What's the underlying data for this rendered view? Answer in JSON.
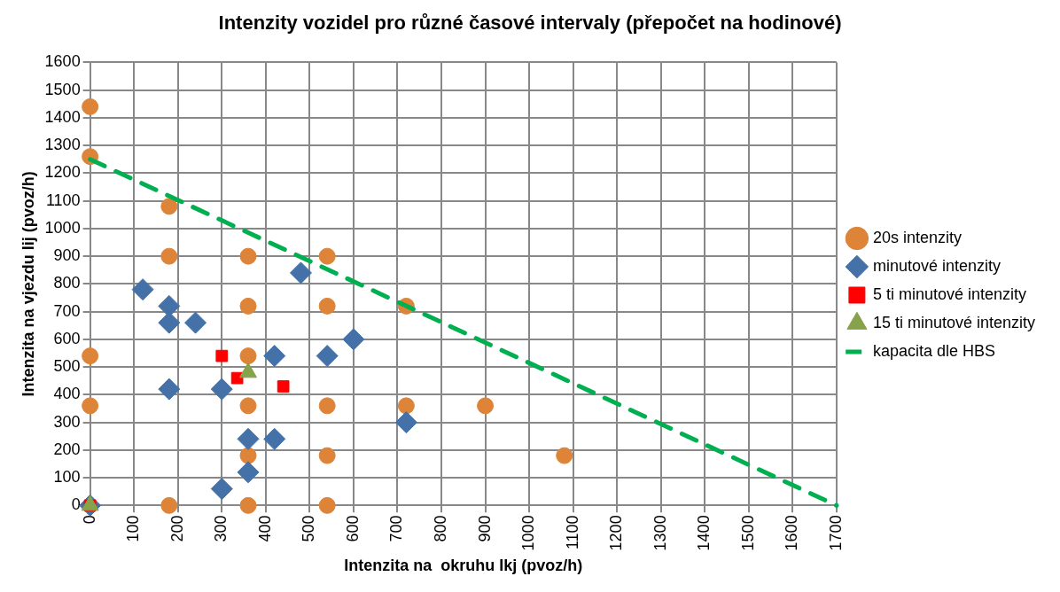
{
  "chart_data": {
    "type": "scatter",
    "title": "Intenzity vozidel pro různé časové intervaly (přepočet na hodinové)",
    "xlabel": "Intenzita na  okruhu Ikj (pvoz/h)",
    "ylabel": "Intenzita na vjezdu Iij (pvoz/h)",
    "xlim": [
      0,
      1700
    ],
    "xticks": [
      0,
      100,
      200,
      300,
      400,
      500,
      600,
      700,
      800,
      900,
      1000,
      1100,
      1200,
      1300,
      1400,
      1500,
      1600,
      1700
    ],
    "ylim": [
      0,
      1600
    ],
    "yticks": [
      0,
      100,
      200,
      300,
      400,
      500,
      600,
      700,
      800,
      900,
      1000,
      1100,
      1200,
      1300,
      1400,
      1500,
      1600
    ],
    "grid": true,
    "legend": "right",
    "series": [
      {
        "name": "20s intenzity",
        "color": "#dd8439",
        "marker": "circle",
        "x": [
          0,
          0,
          0,
          0,
          180,
          180,
          180,
          360,
          360,
          360,
          360,
          360,
          360,
          540,
          540,
          540,
          540,
          540,
          720,
          720,
          900,
          1080
        ],
        "values": [
          1440,
          1260,
          540,
          360,
          1080,
          900,
          0,
          900,
          720,
          540,
          360,
          180,
          0,
          900,
          720,
          360,
          180,
          0,
          720,
          360,
          360,
          180
        ]
      },
      {
        "name": "minutové intenzity",
        "color": "#4472a8",
        "marker": "diamond",
        "x": [
          0,
          120,
          180,
          180,
          240,
          180,
          300,
          300,
          360,
          360,
          420,
          420,
          480,
          540,
          600,
          720
        ],
        "values": [
          0,
          780,
          720,
          660,
          660,
          420,
          420,
          60,
          240,
          120,
          240,
          540,
          840,
          540,
          600,
          300
        ]
      },
      {
        "name": "5 ti minutové intenzity",
        "color": "#ff0000",
        "marker": "square",
        "x": [
          0,
          300,
          335,
          440
        ],
        "values": [
          0,
          540,
          460,
          430
        ]
      },
      {
        "name": "15 ti minutové intenzity",
        "color": "#86a24a",
        "marker": "triangle",
        "x": [
          0,
          360
        ],
        "values": [
          0,
          480
        ]
      },
      {
        "name": "kapacita dle HBS",
        "type": "line",
        "color": "#00b050",
        "marker": "none",
        "line_style": "dashed",
        "x": [
          0,
          1700
        ],
        "values": [
          1250,
          0
        ]
      }
    ]
  }
}
